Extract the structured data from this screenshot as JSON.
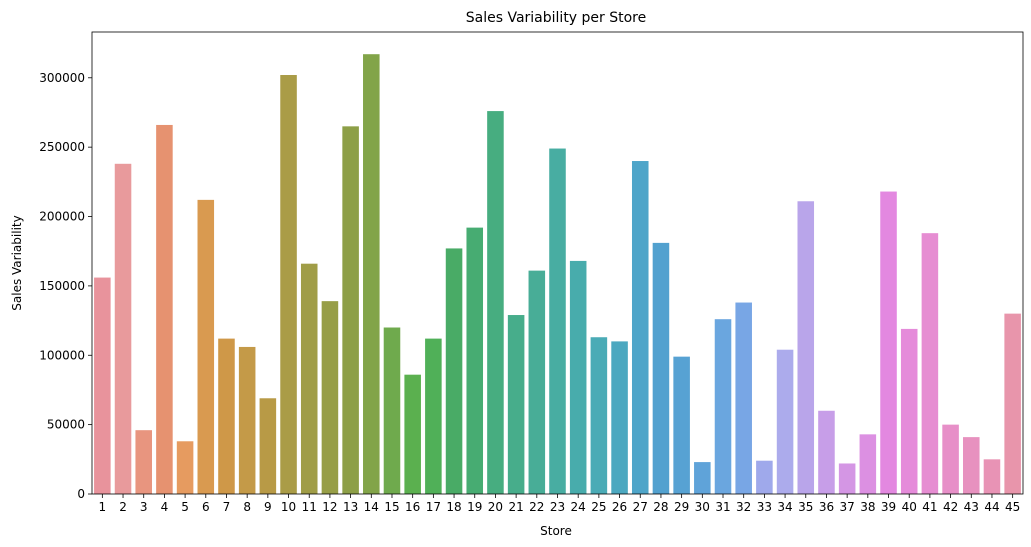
{
  "chart_data": {
    "type": "bar",
    "title": "Sales Variability per Store",
    "xlabel": "Store",
    "ylabel": "Sales Variability",
    "ylim": [
      0,
      333000
    ],
    "yticks": [
      0,
      50000,
      100000,
      150000,
      200000,
      250000,
      300000
    ],
    "grid": false,
    "legend": "none",
    "categories": [
      "1",
      "2",
      "3",
      "4",
      "5",
      "6",
      "7",
      "8",
      "9",
      "10",
      "11",
      "12",
      "13",
      "14",
      "15",
      "16",
      "17",
      "18",
      "19",
      "20",
      "21",
      "22",
      "23",
      "24",
      "25",
      "26",
      "27",
      "28",
      "29",
      "30",
      "31",
      "32",
      "33",
      "34",
      "35",
      "36",
      "37",
      "38",
      "39",
      "40",
      "41",
      "42",
      "43",
      "44",
      "45"
    ],
    "values": [
      156000,
      238000,
      46000,
      266000,
      38000,
      212000,
      112000,
      106000,
      69000,
      302000,
      166000,
      139000,
      265000,
      317000,
      120000,
      86000,
      112000,
      177000,
      192000,
      276000,
      129000,
      161000,
      249000,
      168000,
      113000,
      110000,
      240000,
      181000,
      99000,
      23000,
      126000,
      138000,
      24000,
      104000,
      211000,
      60000,
      22000,
      43000,
      218000,
      119000,
      188000,
      50000,
      41000,
      25000,
      130000
    ],
    "colors": [
      "#e8939c",
      "#e89a9c",
      "#e8957f",
      "#e69270",
      "#e69b60",
      "#d99a50",
      "#cf9848",
      "#c49a48",
      "#b89a46",
      "#aa9c47",
      "#a09d47",
      "#979e47",
      "#8d9f47",
      "#82a449",
      "#6faa4d",
      "#5bb04f",
      "#50b058",
      "#49ab66",
      "#47ac72",
      "#47ad80",
      "#47ad8b",
      "#48ad97",
      "#48ada2",
      "#48acac",
      "#4aabb6",
      "#4ca8c0",
      "#4ea5c9",
      "#52a1cf",
      "#57a2d3",
      "#5fa3d9",
      "#6aa6df",
      "#78a6e5",
      "#9fa9eb",
      "#acabec",
      "#b9a5ea",
      "#c79ee8",
      "#d496e4",
      "#dc90e2",
      "#e388e0",
      "#e58bda",
      "#e68dd2",
      "#e78fc8",
      "#e791bf",
      "#e893b5",
      "#e895ab"
    ]
  }
}
